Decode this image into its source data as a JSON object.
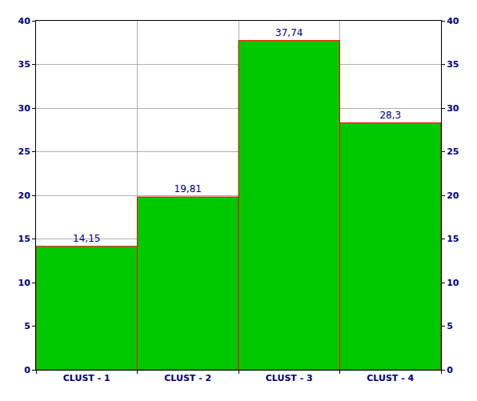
{
  "chart_data": {
    "type": "bar",
    "categories": [
      "CLUST - 1",
      "CLUST - 2",
      "CLUST - 3",
      "CLUST - 4"
    ],
    "values": [
      14.15,
      19.81,
      37.74,
      28.3
    ],
    "value_labels": [
      "14,15",
      "19,81",
      "37,74",
      "28,3"
    ],
    "color": "#00c800",
    "ylim": [
      0,
      40
    ],
    "yticks": [
      0,
      5,
      10,
      15,
      20,
      25,
      30,
      35,
      40
    ],
    "y2lim": [
      0,
      40
    ],
    "y2ticks": [
      0,
      5,
      10,
      15,
      20,
      25,
      30,
      35,
      40
    ],
    "grid": true,
    "data_labels": true
  }
}
